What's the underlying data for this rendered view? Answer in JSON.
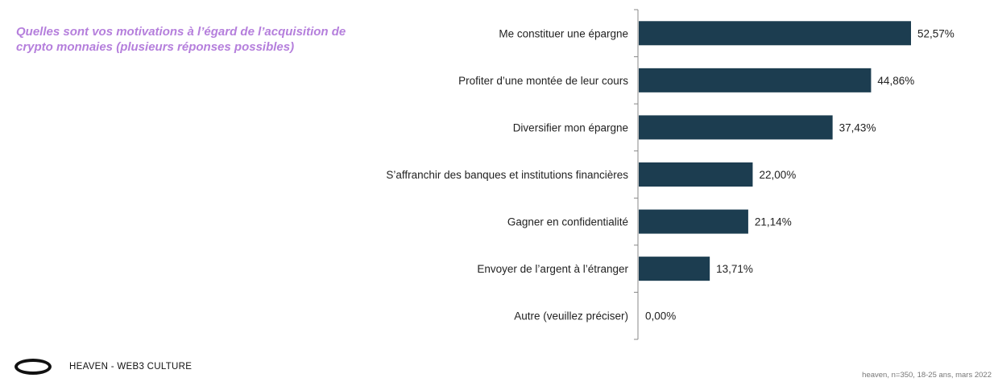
{
  "question": "Quelles sont vos motivations à l’égard de l’acquisition de crypto monnaies (plusieurs réponses possibles)",
  "brand": {
    "logo_icon": "ring-logo-icon",
    "name": "HEAVEN - WEB3 CULTURE"
  },
  "source": "heaven, n=350, 18-25 ans, mars 2022",
  "chart_data": {
    "type": "bar",
    "orientation": "horizontal",
    "categories": [
      "Me constituer une épargne",
      "Profiter d’une montée de leur cours",
      "Diversifier mon épargne",
      "S’affranchir des banques et institutions financières",
      "Gagner en confidentialité",
      "Envoyer de l’argent à l’étranger",
      "Autre (veuillez préciser)"
    ],
    "values": [
      52.57,
      44.86,
      37.43,
      22.0,
      21.14,
      13.71,
      0.0
    ],
    "value_labels": [
      "52,57%",
      "44,86%",
      "37,43%",
      "22,00%",
      "21,14%",
      "13,71%",
      "0,00%"
    ],
    "bar_color": "#1c3d50",
    "grid": false,
    "legend": "none"
  }
}
